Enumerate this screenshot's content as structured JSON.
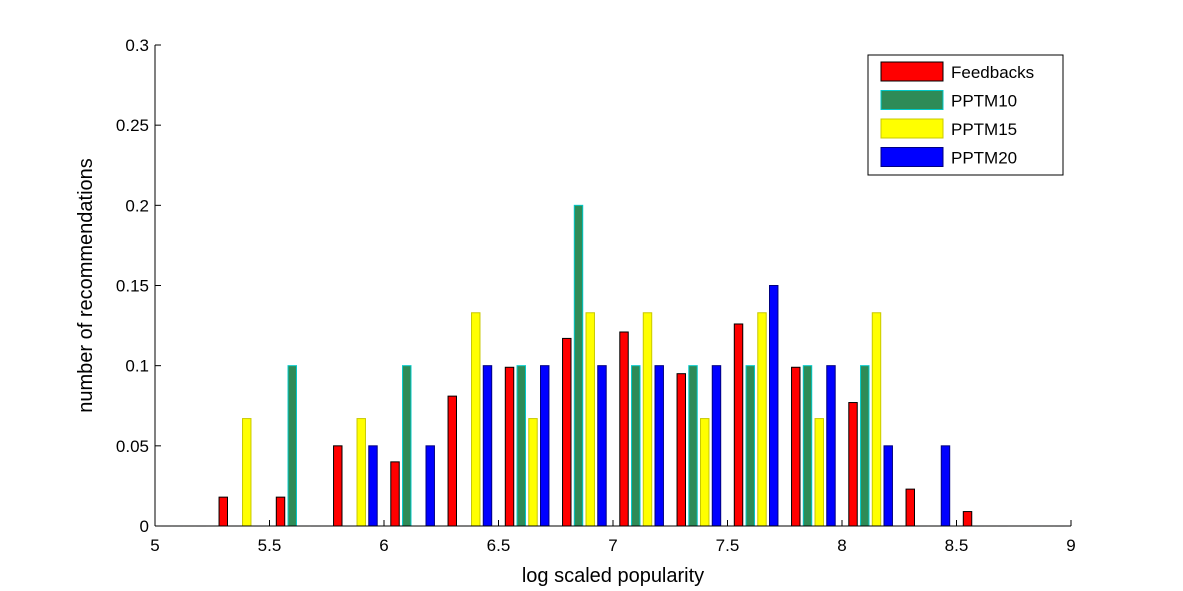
{
  "chart_data": {
    "type": "bar",
    "title": "",
    "xlabel": "log scaled popularity",
    "ylabel": "number of recommendations",
    "xlim": [
      5,
      9
    ],
    "ylim": [
      0,
      0.3
    ],
    "xticks": [
      5,
      5.5,
      6,
      6.5,
      7,
      7.5,
      8,
      8.5,
      9
    ],
    "xtick_labels": [
      "5",
      "5.5",
      "6",
      "6.5",
      "7",
      "7.5",
      "8",
      "8.5",
      "9"
    ],
    "yticks": [
      0,
      0.05,
      0.1,
      0.15,
      0.2,
      0.25,
      0.3
    ],
    "ytick_labels": [
      "0",
      "0.05",
      "0.1",
      "0.15",
      "0.2",
      "0.25",
      "0.3"
    ],
    "grid": false,
    "legend_position": "top-right",
    "bin_width": 0.25,
    "bin_centers": [
      5.125,
      5.375,
      5.625,
      5.875,
      6.125,
      6.375,
      6.625,
      6.875,
      7.125,
      7.375,
      7.625,
      7.875,
      8.125,
      8.375,
      8.625,
      8.875
    ],
    "series": [
      {
        "name": "Feedbacks",
        "color": "#ff0000",
        "edge": "#000000",
        "values": [
          0,
          0.018,
          0.018,
          0.05,
          0.04,
          0.081,
          0.099,
          0.117,
          0.121,
          0.095,
          0.126,
          0.099,
          0.077,
          0.023,
          0.009,
          0
        ]
      },
      {
        "name": "PPTM10",
        "color": "#2e8b57",
        "edge": "#00c8c8",
        "values": [
          0,
          0,
          0.1,
          0,
          0.1,
          0,
          0.1,
          0.2,
          0.1,
          0.1,
          0.1,
          0.1,
          0.1,
          0,
          0,
          0
        ]
      },
      {
        "name": "PPTM15",
        "color": "#ffff00",
        "edge": "#c8c800",
        "values": [
          0,
          0.067,
          0,
          0.067,
          0,
          0.133,
          0.067,
          0.133,
          0.133,
          0.067,
          0.133,
          0.067,
          0.133,
          0,
          0,
          0
        ]
      },
      {
        "name": "PPTM20",
        "color": "#0000ff",
        "edge": "#000080",
        "values": [
          0,
          0,
          0,
          0.05,
          0.05,
          0.1,
          0.1,
          0.1,
          0.1,
          0.1,
          0.15,
          0.1,
          0.05,
          0.05,
          0,
          0
        ]
      }
    ]
  }
}
